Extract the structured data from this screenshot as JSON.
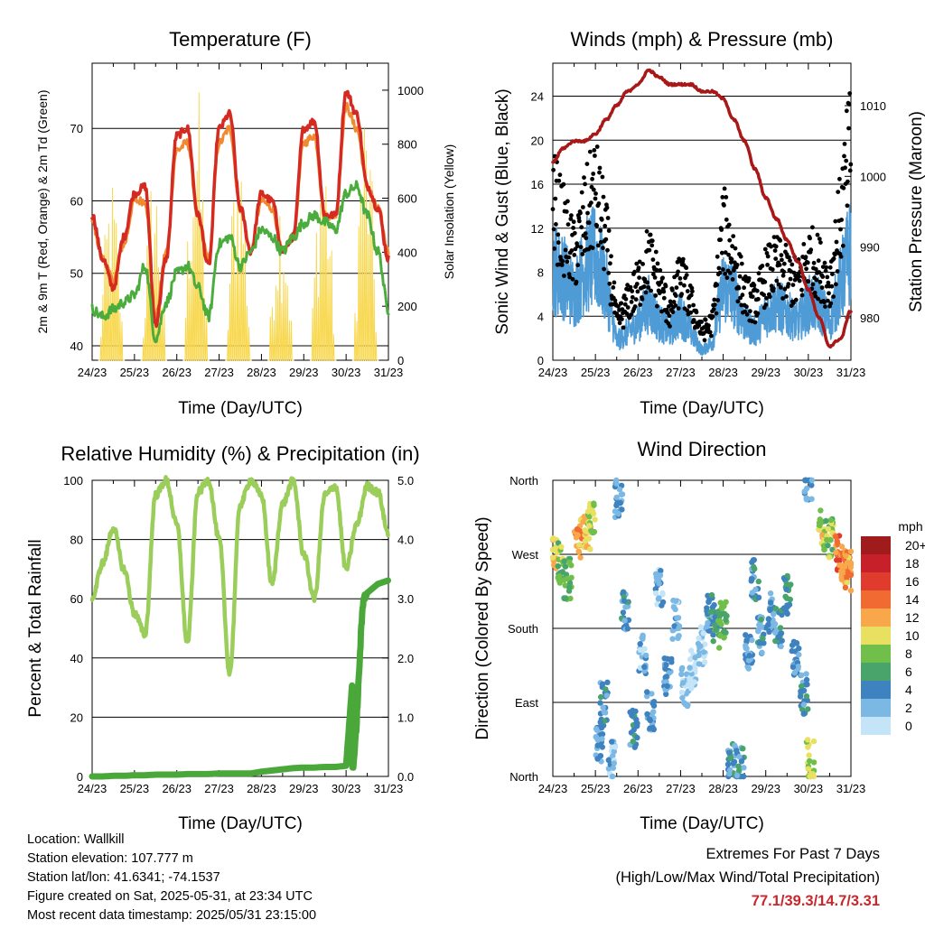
{
  "charts": {
    "temperature": {
      "title": "Temperature (F)",
      "ylabel_left": "2m & 9m T (Red, Orange) & 2m Td (Green)",
      "ylabel_right": "Solar Insolation (Yellow)",
      "xlabel": "Time (Day/UTC)",
      "xticks": [
        "24/23",
        "25/23",
        "26/23",
        "27/23",
        "28/23",
        "29/23",
        "30/23",
        "31/23"
      ],
      "yticks_left": [
        "40",
        "50",
        "60",
        "70"
      ],
      "yticks_right": [
        "0",
        "200",
        "400",
        "600",
        "800",
        "1000"
      ]
    },
    "winds": {
      "title": "Winds (mph) & Pressure (mb)",
      "ylabel_left": "Sonic Wind & Gust (Blue, Black)",
      "ylabel_right": "Station Pressure (Maroon)",
      "xlabel": "Time (Day/UTC)",
      "xticks": [
        "24/23",
        "25/23",
        "26/23",
        "27/23",
        "28/23",
        "29/23",
        "30/23",
        "31/23"
      ],
      "yticks_left": [
        "0",
        "4",
        "8",
        "12",
        "16",
        "20",
        "24"
      ],
      "yticks_right": [
        "980",
        "990",
        "1000",
        "1010"
      ]
    },
    "humidity": {
      "title": "Relative Humidity (%) & Precipitation (in)",
      "ylabel_left": "Percent & Total Rainfall",
      "xlabel": "Time (Day/UTC)",
      "xticks": [
        "24/23",
        "25/23",
        "26/23",
        "27/23",
        "28/23",
        "29/23",
        "30/23",
        "31/23"
      ],
      "yticks_left": [
        "0",
        "20",
        "40",
        "60",
        "80",
        "100"
      ],
      "yticks_right": [
        "0.0",
        "1.0",
        "2.0",
        "3.0",
        "4.0",
        "5.0"
      ]
    },
    "direction": {
      "title": "Wind Direction",
      "ylabel_left": "Direction (Colored By Speed)",
      "xlabel": "Time (Day/UTC)",
      "xticks": [
        "24/23",
        "25/23",
        "26/23",
        "27/23",
        "28/23",
        "29/23",
        "30/23",
        "31/23"
      ],
      "yticks_left": [
        "North",
        "East",
        "South",
        "West",
        "North"
      ],
      "legend_title": "mph",
      "legend_labels": [
        "20+",
        "18",
        "16",
        "14",
        "12",
        "10",
        "8",
        "6",
        "4",
        "2",
        "0"
      ],
      "legend_colors": [
        "#a01c1c",
        "#c8202a",
        "#e03c2e",
        "#f06a32",
        "#f8a84a",
        "#e8e060",
        "#6fbf4a",
        "#48a46a",
        "#3e82c0",
        "#7cb8e4",
        "#c4e4f8"
      ]
    }
  },
  "chart_data": [
    {
      "type": "line",
      "title": "Temperature (F)",
      "xlabel": "Time (Day/UTC)",
      "ylabel": "2m & 9m T (Red, Orange) & 2m Td (Green)",
      "ylim": [
        38,
        79
      ],
      "y2lim": [
        0,
        1100
      ],
      "x": [
        24.0,
        24.25,
        24.5,
        24.75,
        25.0,
        25.25,
        25.5,
        25.75,
        26.0,
        26.25,
        26.5,
        26.75,
        27.0,
        27.25,
        27.5,
        27.75,
        28.0,
        28.25,
        28.5,
        28.75,
        29.0,
        29.25,
        29.5,
        29.75,
        30.0,
        30.25,
        30.5,
        30.75,
        31.0
      ],
      "series": [
        {
          "name": "2m T",
          "color": "#d42a22",
          "values": [
            58,
            52,
            48,
            55,
            61,
            62,
            43,
            52,
            69,
            70,
            58,
            51,
            70,
            72,
            59,
            53,
            61,
            60,
            53,
            55,
            70,
            71,
            58,
            58,
            75,
            72,
            62,
            59,
            52
          ]
        },
        {
          "name": "9m T",
          "color": "#f08a30",
          "values": [
            57,
            52,
            49,
            54,
            60,
            60,
            44,
            53,
            67,
            68,
            58,
            52,
            68,
            70,
            59,
            53,
            60,
            59,
            53,
            55,
            68,
            69,
            58,
            58,
            73,
            70,
            62,
            59,
            53
          ]
        },
        {
          "name": "2m Td",
          "color": "#4aac3c",
          "values": [
            45,
            44,
            45,
            46,
            47,
            51,
            41,
            46,
            50,
            51,
            48,
            44,
            54,
            55,
            51,
            53,
            56,
            55,
            53,
            55,
            57,
            58,
            57,
            56,
            61,
            62,
            58,
            53,
            45
          ]
        },
        {
          "name": "Solar Insolation",
          "color": "#f8d850",
          "axis": "right",
          "values": [
            0,
            0,
            700,
            200,
            0,
            0,
            750,
            700,
            0,
            0,
            1080,
            200,
            0,
            0,
            900,
            200,
            0,
            0,
            700,
            150,
            0,
            0,
            900,
            200,
            0,
            0,
            1000,
            150,
            0
          ]
        }
      ]
    },
    {
      "type": "line",
      "title": "Winds (mph) & Pressure (mb)",
      "xlabel": "Time (Day/UTC)",
      "ylabel": "Sonic Wind & Gust (Blue, Black)",
      "ylim": [
        0,
        27
      ],
      "y2lim": [
        974,
        1016
      ],
      "x": [
        24.0,
        24.25,
        24.5,
        24.75,
        25.0,
        25.25,
        25.5,
        25.75,
        26.0,
        26.25,
        26.5,
        26.75,
        27.0,
        27.25,
        27.5,
        27.75,
        28.0,
        28.25,
        28.5,
        28.75,
        29.0,
        29.25,
        29.5,
        29.75,
        30.0,
        30.25,
        30.5,
        30.75,
        31.0
      ],
      "series": [
        {
          "name": "Sonic Wind",
          "color": "#4f9bd6",
          "values": [
            10,
            9,
            7,
            10,
            11,
            8,
            2,
            3,
            4,
            6,
            4,
            3,
            5,
            3,
            1,
            2,
            8,
            7,
            4,
            3,
            5,
            6,
            5,
            4,
            6,
            6,
            4,
            8,
            12
          ]
        },
        {
          "name": "Gust",
          "color": "#000000",
          "values": [
            17,
            14,
            11,
            15,
            18,
            13,
            4,
            6,
            8,
            11,
            8,
            5,
            9,
            6,
            3,
            4,
            14,
            11,
            7,
            6,
            9,
            10,
            9,
            8,
            11,
            10,
            8,
            15,
            23
          ]
        },
        {
          "name": "Station Pressure",
          "color": "#a81818",
          "axis": "right",
          "values": [
            1002,
            1004,
            1005,
            1005,
            1006,
            1008,
            1010,
            1012,
            1013,
            1015,
            1014,
            1013,
            1013,
            1013,
            1012,
            1012,
            1011,
            1008,
            1005,
            1001,
            997,
            994,
            991,
            988,
            984,
            980,
            976,
            977,
            981
          ]
        }
      ]
    },
    {
      "type": "line",
      "title": "Relative Humidity (%) & Precipitation (in)",
      "xlabel": "Time (Day/UTC)",
      "ylabel": "Percent & Total Rainfall",
      "ylim": [
        0,
        100
      ],
      "y2lim": [
        0,
        5
      ],
      "x": [
        24.0,
        24.25,
        24.5,
        24.75,
        25.0,
        25.25,
        25.5,
        25.75,
        26.0,
        26.25,
        26.5,
        26.75,
        27.0,
        27.25,
        27.5,
        27.75,
        28.0,
        28.25,
        28.5,
        28.75,
        29.0,
        29.25,
        29.5,
        29.75,
        30.0,
        30.25,
        30.5,
        30.75,
        31.0
      ],
      "series": [
        {
          "name": "Relative Humidity",
          "color": "#9acd5a",
          "values": [
            60,
            72,
            84,
            70,
            55,
            48,
            95,
            100,
            85,
            45,
            96,
            100,
            80,
            35,
            92,
            100,
            95,
            65,
            92,
            100,
            75,
            60,
            95,
            98,
            70,
            85,
            98,
            96,
            82
          ]
        },
        {
          "name": "Total Precipitation",
          "color": "#4aa83a",
          "axis": "right",
          "values": [
            0,
            0,
            0.01,
            0.01,
            0.02,
            0.02,
            0.03,
            0.03,
            0.03,
            0.04,
            0.04,
            0.04,
            0.05,
            0.05,
            0.05,
            0.05,
            0.08,
            0.1,
            0.12,
            0.14,
            0.15,
            0.15,
            0.16,
            0.16,
            0.18,
            2.6,
            3.1,
            3.25,
            3.31
          ]
        }
      ]
    },
    {
      "type": "scatter",
      "title": "Wind Direction",
      "xlabel": "Time (Day/UTC)",
      "ylabel": "Direction (Colored By Speed)",
      "xlim": [
        24,
        31
      ],
      "ylim": [
        0,
        360
      ],
      "points": [
        {
          "x": 24.05,
          "y": 270,
          "speed": 11
        },
        {
          "x": 24.2,
          "y": 260,
          "speed": 8
        },
        {
          "x": 24.35,
          "y": 240,
          "speed": 7
        },
        {
          "x": 24.6,
          "y": 290,
          "speed": 12
        },
        {
          "x": 24.8,
          "y": 300,
          "speed": 11
        },
        {
          "x": 24.9,
          "y": 320,
          "speed": 9
        },
        {
          "x": 25.1,
          "y": 40,
          "speed": 3
        },
        {
          "x": 25.2,
          "y": 90,
          "speed": 4
        },
        {
          "x": 25.4,
          "y": 20,
          "speed": 2
        },
        {
          "x": 25.55,
          "y": 340,
          "speed": 3
        },
        {
          "x": 25.7,
          "y": 200,
          "speed": 4
        },
        {
          "x": 25.9,
          "y": 60,
          "speed": 4
        },
        {
          "x": 26.1,
          "y": 150,
          "speed": 2
        },
        {
          "x": 26.3,
          "y": 80,
          "speed": 3
        },
        {
          "x": 26.5,
          "y": 230,
          "speed": 2
        },
        {
          "x": 26.7,
          "y": 120,
          "speed": 3
        },
        {
          "x": 26.9,
          "y": 190,
          "speed": 2
        },
        {
          "x": 27.1,
          "y": 110,
          "speed": 1
        },
        {
          "x": 27.3,
          "y": 130,
          "speed": 0
        },
        {
          "x": 27.5,
          "y": 160,
          "speed": 1
        },
        {
          "x": 27.7,
          "y": 200,
          "speed": 4
        },
        {
          "x": 27.85,
          "y": 180,
          "speed": 6
        },
        {
          "x": 28.0,
          "y": 190,
          "speed": 7
        },
        {
          "x": 28.2,
          "y": 20,
          "speed": 4
        },
        {
          "x": 28.4,
          "y": 10,
          "speed": 4
        },
        {
          "x": 28.6,
          "y": 150,
          "speed": 3
        },
        {
          "x": 28.75,
          "y": 240,
          "speed": 4
        },
        {
          "x": 28.9,
          "y": 170,
          "speed": 4
        },
        {
          "x": 29.1,
          "y": 200,
          "speed": 3
        },
        {
          "x": 29.3,
          "y": 180,
          "speed": 4
        },
        {
          "x": 29.5,
          "y": 220,
          "speed": 5
        },
        {
          "x": 29.7,
          "y": 140,
          "speed": 3
        },
        {
          "x": 29.9,
          "y": 100,
          "speed": 4
        },
        {
          "x": 30.0,
          "y": 360,
          "speed": 3
        },
        {
          "x": 30.05,
          "y": 20,
          "speed": 9
        },
        {
          "x": 30.3,
          "y": 300,
          "speed": 10
        },
        {
          "x": 30.5,
          "y": 290,
          "speed": 8
        },
        {
          "x": 30.7,
          "y": 270,
          "speed": 14
        },
        {
          "x": 30.85,
          "y": 260,
          "speed": 13
        },
        {
          "x": 30.95,
          "y": 250,
          "speed": 12
        }
      ]
    }
  ],
  "footer": {
    "location": "Location: Wallkill",
    "elevation": "Station elevation: 107.777 m",
    "latlon": "Station lat/lon: 41.6341; -74.1537",
    "created": "Figure created on Sat, 2025-05-31, at 23:34 UTC",
    "recent": "Most recent data timestamp: 2025/05/31 23:15:00"
  },
  "extremes": {
    "line1": "Extremes For Past 7 Days",
    "line2": "(High/Low/Max Wind/Total Precipitation)",
    "values": "77.1/39.3/14.7/3.31"
  }
}
